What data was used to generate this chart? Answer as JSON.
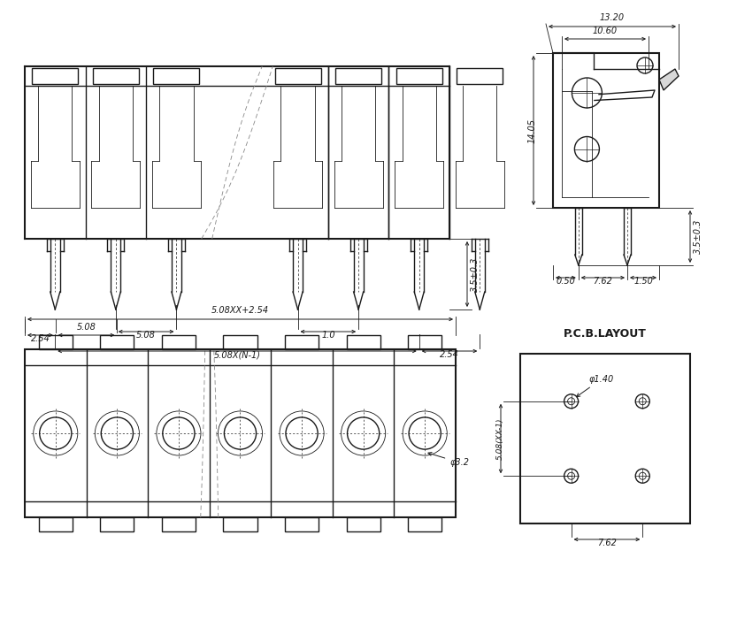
{
  "bg_color": "#ffffff",
  "line_color": "#1a1a1a",
  "lw": 1.0,
  "lw_thick": 1.5,
  "lw_thin": 0.6,
  "front_view": {
    "dim_508": "5.08",
    "dim_10": "1.0",
    "dim_508xn1": "5.08X(N-1)",
    "dim_254": "2.54",
    "dim_35": "3.5±0.3"
  },
  "side_view": {
    "dim_1320": "13.20",
    "dim_1060": "10.60",
    "dim_1405": "14.05",
    "dim_050": "0.50",
    "dim_762": "7.62",
    "dim_150": "1.50"
  },
  "bottom_view": {
    "dim_508xx254": "5.08XX+2.54",
    "dim_508": "5.08",
    "dim_254": "2.54",
    "dim_32": "φ3.2"
  },
  "pcb_layout": {
    "label": "P.C.B.LAYOUT",
    "dim_140": "φ1.40",
    "dim_762": "7.62",
    "dim_508xx1": "5.08(XX-1)"
  }
}
